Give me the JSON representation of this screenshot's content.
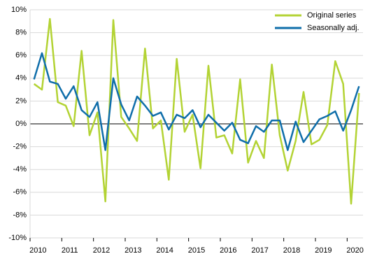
{
  "chart_data": {
    "type": "line",
    "categories": [
      "2010",
      null,
      null,
      null,
      "2011",
      null,
      null,
      null,
      "2012",
      null,
      null,
      null,
      "2013",
      null,
      null,
      null,
      "2014",
      null,
      null,
      null,
      "2015",
      null,
      null,
      null,
      "2016",
      null,
      null,
      null,
      "2017",
      null,
      null,
      null,
      "2018",
      null,
      null,
      null,
      "2019",
      null,
      null,
      null,
      "2020",
      null
    ],
    "series": [
      {
        "name": "Original series",
        "color": "#b3d334",
        "values": [
          3.5,
          3.0,
          9.2,
          1.9,
          1.6,
          -0.2,
          6.4,
          -1.0,
          1.0,
          -6.8,
          9.1,
          0.6,
          -0.4,
          -1.5,
          6.6,
          -0.4,
          0.3,
          -4.9,
          5.7,
          -0.7,
          0.8,
          -3.9,
          5.1,
          -1.2,
          -1.0,
          -2.6,
          3.9,
          -3.4,
          -1.5,
          -3.0,
          5.2,
          -1.0,
          -4.1,
          -1.5,
          2.8,
          -1.8,
          -1.4,
          -0.1,
          5.5,
          3.5,
          -7.0,
          2.7
        ]
      },
      {
        "name": "Seasonally adj.",
        "color": "#0f6eaa",
        "values": [
          3.9,
          6.2,
          3.7,
          3.5,
          2.2,
          3.3,
          1.2,
          0.6,
          1.9,
          -2.3,
          4.0,
          1.7,
          0.3,
          2.4,
          1.6,
          0.7,
          1.0,
          -0.5,
          0.8,
          0.5,
          1.2,
          -0.3,
          0.8,
          0.1,
          -0.6,
          0.1,
          -1.4,
          -1.7,
          -0.2,
          -0.7,
          0.3,
          0.3,
          -2.3,
          0.2,
          -1.6,
          -0.6,
          0.4,
          0.7,
          1.1,
          -0.6,
          1.2,
          3.3
        ]
      }
    ],
    "ylim": [
      -10,
      10
    ],
    "yticks": [
      {
        "value": -10,
        "label": "-10%"
      },
      {
        "value": -8,
        "label": "-8%"
      },
      {
        "value": -6,
        "label": "-6%"
      },
      {
        "value": -4,
        "label": "-4%"
      },
      {
        "value": -2,
        "label": "-2%"
      },
      {
        "value": 0,
        "label": "0%"
      },
      {
        "value": 2,
        "label": "2%"
      },
      {
        "value": 4,
        "label": "4%"
      },
      {
        "value": 6,
        "label": "6%"
      },
      {
        "value": 8,
        "label": "8%"
      },
      {
        "value": 10,
        "label": "10%"
      }
    ],
    "grid": true,
    "legend": "top-right"
  }
}
